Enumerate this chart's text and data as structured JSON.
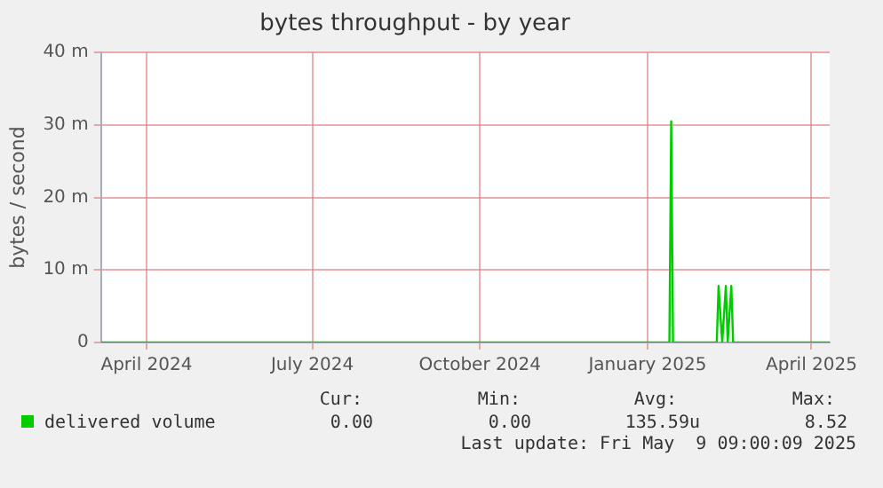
{
  "chart_data": {
    "type": "line",
    "title": "bytes throughput - by year",
    "ylabel": "bytes / second",
    "series": [
      {
        "name": "delivered volume",
        "color": "#00cc00",
        "x": [
          "2024-03-07",
          "2025-01-13",
          "2025-01-14",
          "2025-01-15",
          "2025-02-08",
          "2025-02-09",
          "2025-02-11",
          "2025-02-13",
          "2025-02-14",
          "2025-02-16",
          "2025-02-17",
          "2025-04-11"
        ],
        "values": [
          0,
          0,
          30.5,
          0,
          0,
          7.8,
          0,
          7.8,
          0,
          7.8,
          0,
          0
        ]
      }
    ],
    "xlim": [
      "2024-03-07",
      "2025-04-11"
    ],
    "xticks": [
      {
        "value": "2024-04-01",
        "label": "April 2024"
      },
      {
        "value": "2024-07-01",
        "label": "July 2024"
      },
      {
        "value": "2024-10-01",
        "label": "October 2024"
      },
      {
        "value": "2025-01-01",
        "label": "January 2025"
      },
      {
        "value": "2025-04-01",
        "label": "April 2025"
      }
    ],
    "ylim": [
      0,
      40
    ],
    "yticks": [
      0,
      {
        "value": 10,
        "label": "10 m"
      },
      {
        "value": 20,
        "label": "20 m"
      },
      {
        "value": 30,
        "label": "30 m"
      },
      {
        "value": 40,
        "label": "40 m"
      }
    ],
    "grid": true,
    "legend": "bottom left",
    "marker": "none",
    "line_style": "solid",
    "annotations": [
      "Cur:",
      "Min:",
      "Avg:",
      "Max:",
      "0.00",
      "0.00",
      "135.59u",
      "8.52",
      "Last update: Fri May  9 09:00:09 2025"
    ]
  }
}
